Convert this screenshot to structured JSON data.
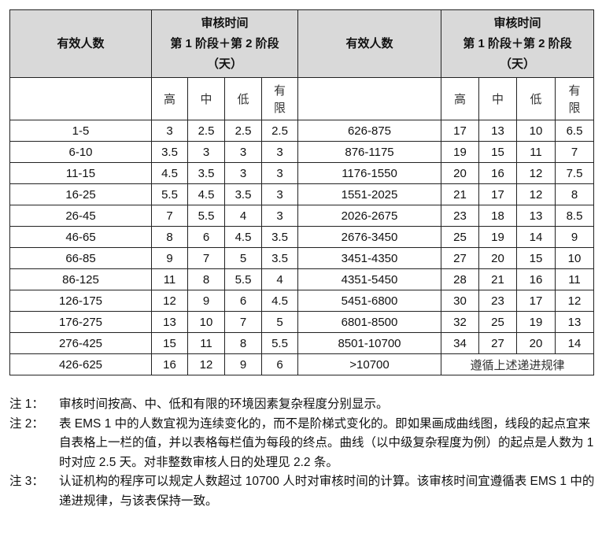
{
  "table": {
    "header": {
      "count_label": "有效人数",
      "time_line1": "审核时间",
      "time_line2": "第 1 阶段＋第 2 阶段",
      "time_line3": "（天）"
    },
    "levels": [
      "高",
      "中",
      "低",
      "有\n限"
    ],
    "rows": [
      {
        "l": "1-5",
        "lv": [
          "3",
          "2.5",
          "2.5",
          "2.5"
        ],
        "r": "626-875",
        "rv": [
          "17",
          "13",
          "10",
          "6.5"
        ]
      },
      {
        "l": "6-10",
        "lv": [
          "3.5",
          "3",
          "3",
          "3"
        ],
        "r": "876-1175",
        "rv": [
          "19",
          "15",
          "11",
          "7"
        ]
      },
      {
        "l": "11-15",
        "lv": [
          "4.5",
          "3.5",
          "3",
          "3"
        ],
        "r": "1176-1550",
        "rv": [
          "20",
          "16",
          "12",
          "7.5"
        ]
      },
      {
        "l": "16-25",
        "lv": [
          "5.5",
          "4.5",
          "3.5",
          "3"
        ],
        "r": "1551-2025",
        "rv": [
          "21",
          "17",
          "12",
          "8"
        ]
      },
      {
        "l": "26-45",
        "lv": [
          "7",
          "5.5",
          "4",
          "3"
        ],
        "r": "2026-2675",
        "rv": [
          "23",
          "18",
          "13",
          "8.5"
        ]
      },
      {
        "l": "46-65",
        "lv": [
          "8",
          "6",
          "4.5",
          "3.5"
        ],
        "r": "2676-3450",
        "rv": [
          "25",
          "19",
          "14",
          "9"
        ]
      },
      {
        "l": "66-85",
        "lv": [
          "9",
          "7",
          "5",
          "3.5"
        ],
        "r": "3451-4350",
        "rv": [
          "27",
          "20",
          "15",
          "10"
        ]
      },
      {
        "l": "86-125",
        "lv": [
          "11",
          "8",
          "5.5",
          "4"
        ],
        "r": "4351-5450",
        "rv": [
          "28",
          "21",
          "16",
          "11"
        ]
      },
      {
        "l": "126-175",
        "lv": [
          "12",
          "9",
          "6",
          "4.5"
        ],
        "r": "5451-6800",
        "rv": [
          "30",
          "23",
          "17",
          "12"
        ]
      },
      {
        "l": "176-275",
        "lv": [
          "13",
          "10",
          "7",
          "5"
        ],
        "r": "6801-8500",
        "rv": [
          "32",
          "25",
          "19",
          "13"
        ]
      },
      {
        "l": "276-425",
        "lv": [
          "15",
          "11",
          "8",
          "5.5"
        ],
        "r": "8501-10700",
        "rv": [
          "34",
          "27",
          "20",
          "14"
        ]
      },
      {
        "l": "426-625",
        "lv": [
          "16",
          "12",
          "9",
          "6"
        ],
        "r": ">10700",
        "merged": "遵循上述递进规律"
      }
    ]
  },
  "notes": [
    {
      "label": "注 1：",
      "text": "审核时间按高、中、低和有限的环境因素复杂程度分别显示。"
    },
    {
      "label": "注 2：",
      "text": "表 EMS 1 中的人数宜视为连续变化的，而不是阶梯式变化的。即如果画成曲线图，线段的起点宜来自表格上一栏的值，并以表格每栏值为每段的终点。曲线（以中级复杂程度为例）的起点是人数为 1 时对应 2.5 天。对非整数审核人日的处理见 2.2 条。"
    },
    {
      "label": "注 3：",
      "text": "认证机构的程序可以规定人数超过 10700 人时对审核时间的计算。该审核时间宜遵循表 EMS 1 中的递进规律，与该表保持一致。"
    }
  ]
}
